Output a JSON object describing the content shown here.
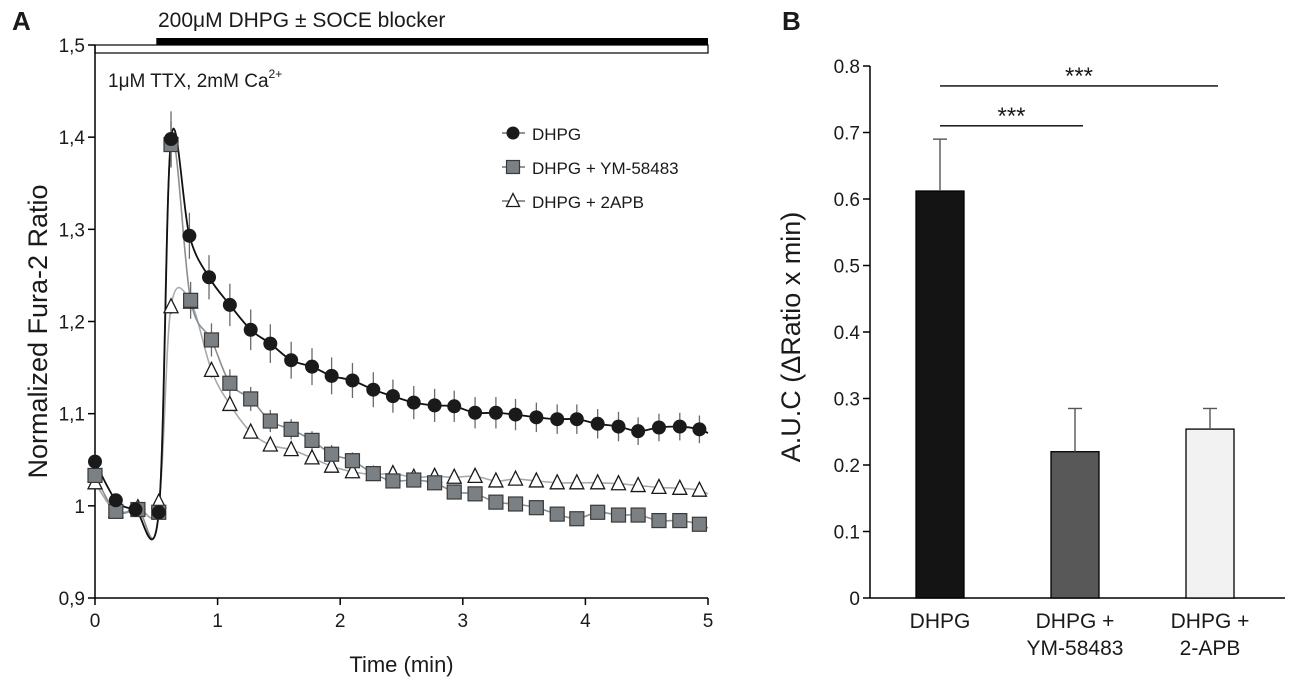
{
  "chart_data": [
    {
      "panel": "A",
      "type": "line",
      "xlabel": "Time (min)",
      "ylabel": "Normalized Fura-2 Ratio",
      "xlim": [
        0,
        5
      ],
      "ylim": [
        0.9,
        1.5
      ],
      "x_ticks": [
        0,
        1,
        2,
        3,
        4,
        5
      ],
      "x_tick_labels": [
        "0",
        "1",
        "2",
        "3",
        "4",
        "5"
      ],
      "y_ticks": [
        0.9,
        1.0,
        1.1,
        1.2,
        1.3,
        1.4,
        1.5
      ],
      "y_tick_labels": [
        "0,9",
        "1",
        "1,1",
        "1,2",
        "1,3",
        "1,4",
        "1,5"
      ],
      "protocol": {
        "drug_bar": {
          "label": "200μM DHPG ± SOCE blocker",
          "start": 0.5,
          "end": 5
        },
        "baseline_bar": {
          "label": "1μM TTX, 2mM Ca",
          "superscript": "2+",
          "start": 0,
          "end": 5
        }
      },
      "series": [
        {
          "name": "DHPG",
          "color": "#1a1a1a",
          "marker": "circle",
          "x": [
            0,
            0.17,
            0.33,
            0.52,
            0.62,
            0.77,
            0.93,
            1.1,
            1.27,
            1.43,
            1.6,
            1.77,
            1.93,
            2.1,
            2.27,
            2.43,
            2.6,
            2.77,
            2.93,
            3.1,
            3.27,
            3.43,
            3.6,
            3.77,
            3.93,
            4.1,
            4.27,
            4.43,
            4.6,
            4.77,
            4.93
          ],
          "y": [
            1.048,
            1.006,
            0.996,
            0.993,
            1.398,
            1.293,
            1.248,
            1.218,
            1.191,
            1.176,
            1.158,
            1.151,
            1.141,
            1.136,
            1.126,
            1.119,
            1.112,
            1.109,
            1.108,
            1.101,
            1.101,
            1.099,
            1.096,
            1.094,
            1.094,
            1.089,
            1.086,
            1.081,
            1.085,
            1.086,
            1.083
          ],
          "error": [
            0.006,
            0.005,
            0.004,
            0.004,
            0.03,
            0.025,
            0.024,
            0.023,
            0.022,
            0.021,
            0.02,
            0.02,
            0.02,
            0.019,
            0.019,
            0.018,
            0.018,
            0.018,
            0.017,
            0.017,
            0.017,
            0.017,
            0.016,
            0.016,
            0.016,
            0.016,
            0.016,
            0.015,
            0.015,
            0.015,
            0.015
          ]
        },
        {
          "name": "DHPG + YM-58483",
          "color": "#7a8084",
          "marker": "square",
          "x": [
            0,
            0.17,
            0.35,
            0.52,
            0.62,
            0.78,
            0.95,
            1.1,
            1.27,
            1.43,
            1.6,
            1.77,
            1.93,
            2.1,
            2.27,
            2.43,
            2.6,
            2.77,
            2.93,
            3.1,
            3.27,
            3.43,
            3.6,
            3.77,
            3.93,
            4.1,
            4.27,
            4.43,
            4.6,
            4.77,
            4.93
          ],
          "y": [
            1.033,
            0.994,
            0.996,
            0.993,
            1.392,
            1.223,
            1.18,
            1.133,
            1.116,
            1.092,
            1.083,
            1.071,
            1.056,
            1.049,
            1.035,
            1.027,
            1.028,
            1.025,
            1.015,
            1.013,
            1.004,
            1.002,
            0.998,
            0.991,
            0.986,
            0.993,
            0.99,
            0.99,
            0.984,
            0.984,
            0.98
          ],
          "error": [
            0.005,
            0.004,
            0.004,
            0.004,
            0.025,
            0.02,
            0.018,
            0.015,
            0.013,
            0.012,
            0.011,
            0.01,
            0.01,
            0.009,
            0.008,
            0.008,
            0.008,
            0.007,
            0.007,
            0.007,
            0.007,
            0.006,
            0.006,
            0.006,
            0.006,
            0.006,
            0.006,
            0.006,
            0.006,
            0.006,
            0.006
          ]
        },
        {
          "name": "DHPG + 2APB",
          "color": "#ffffff",
          "marker": "triangle",
          "x": [
            0,
            0.17,
            0.35,
            0.52,
            0.62,
            0.78,
            0.95,
            1.1,
            1.27,
            1.43,
            1.6,
            1.77,
            1.93,
            2.1,
            2.27,
            2.43,
            2.6,
            2.77,
            2.93,
            3.1,
            3.27,
            3.43,
            3.6,
            3.77,
            3.93,
            4.1,
            4.27,
            4.43,
            4.6,
            4.77,
            4.93
          ],
          "y": [
            1.025,
            0.994,
            0.998,
            1.004,
            1.216,
            1.221,
            1.147,
            1.11,
            1.08,
            1.066,
            1.061,
            1.052,
            1.043,
            1.037,
            1.034,
            1.035,
            1.031,
            1.032,
            1.031,
            1.032,
            1.027,
            1.029,
            1.027,
            1.025,
            1.025,
            1.025,
            1.024,
            1.022,
            1.02,
            1.019,
            1.017
          ],
          "error": [
            0.005,
            0.004,
            0.004,
            0.004,
            0.008,
            0.01,
            0.008,
            0.007,
            0.006,
            0.006,
            0.005,
            0.005,
            0.005,
            0.005,
            0.005,
            0.004,
            0.004,
            0.004,
            0.004,
            0.004,
            0.004,
            0.004,
            0.004,
            0.004,
            0.004,
            0.004,
            0.004,
            0.004,
            0.004,
            0.004,
            0.004
          ]
        }
      ]
    },
    {
      "panel": "B",
      "type": "bar",
      "ylabel": "A.U.C (ΔRatio x min)",
      "ylim": [
        0,
        0.8
      ],
      "y_ticks": [
        0,
        0.1,
        0.2,
        0.3,
        0.4,
        0.5,
        0.6,
        0.7,
        0.8
      ],
      "y_tick_labels": [
        "0",
        "0.1",
        "0.2",
        "0.3",
        "0.4",
        "0.5",
        "0.6",
        "0.7",
        "0.8"
      ],
      "categories": [
        [
          "DHPG"
        ],
        [
          "DHPG +",
          "YM-58483"
        ],
        [
          "DHPG +",
          "2-APB"
        ]
      ],
      "values": [
        0.612,
        0.22,
        0.254
      ],
      "errors": [
        0.078,
        0.065,
        0.031
      ],
      "bar_colors": [
        "#141414",
        "#585858",
        "#f2f2f2"
      ],
      "significance": [
        {
          "from": 0,
          "to": 1,
          "label": "***",
          "y": 0.71
        },
        {
          "from": 0,
          "to": 2,
          "label": "***",
          "y": 0.77
        }
      ]
    }
  ]
}
